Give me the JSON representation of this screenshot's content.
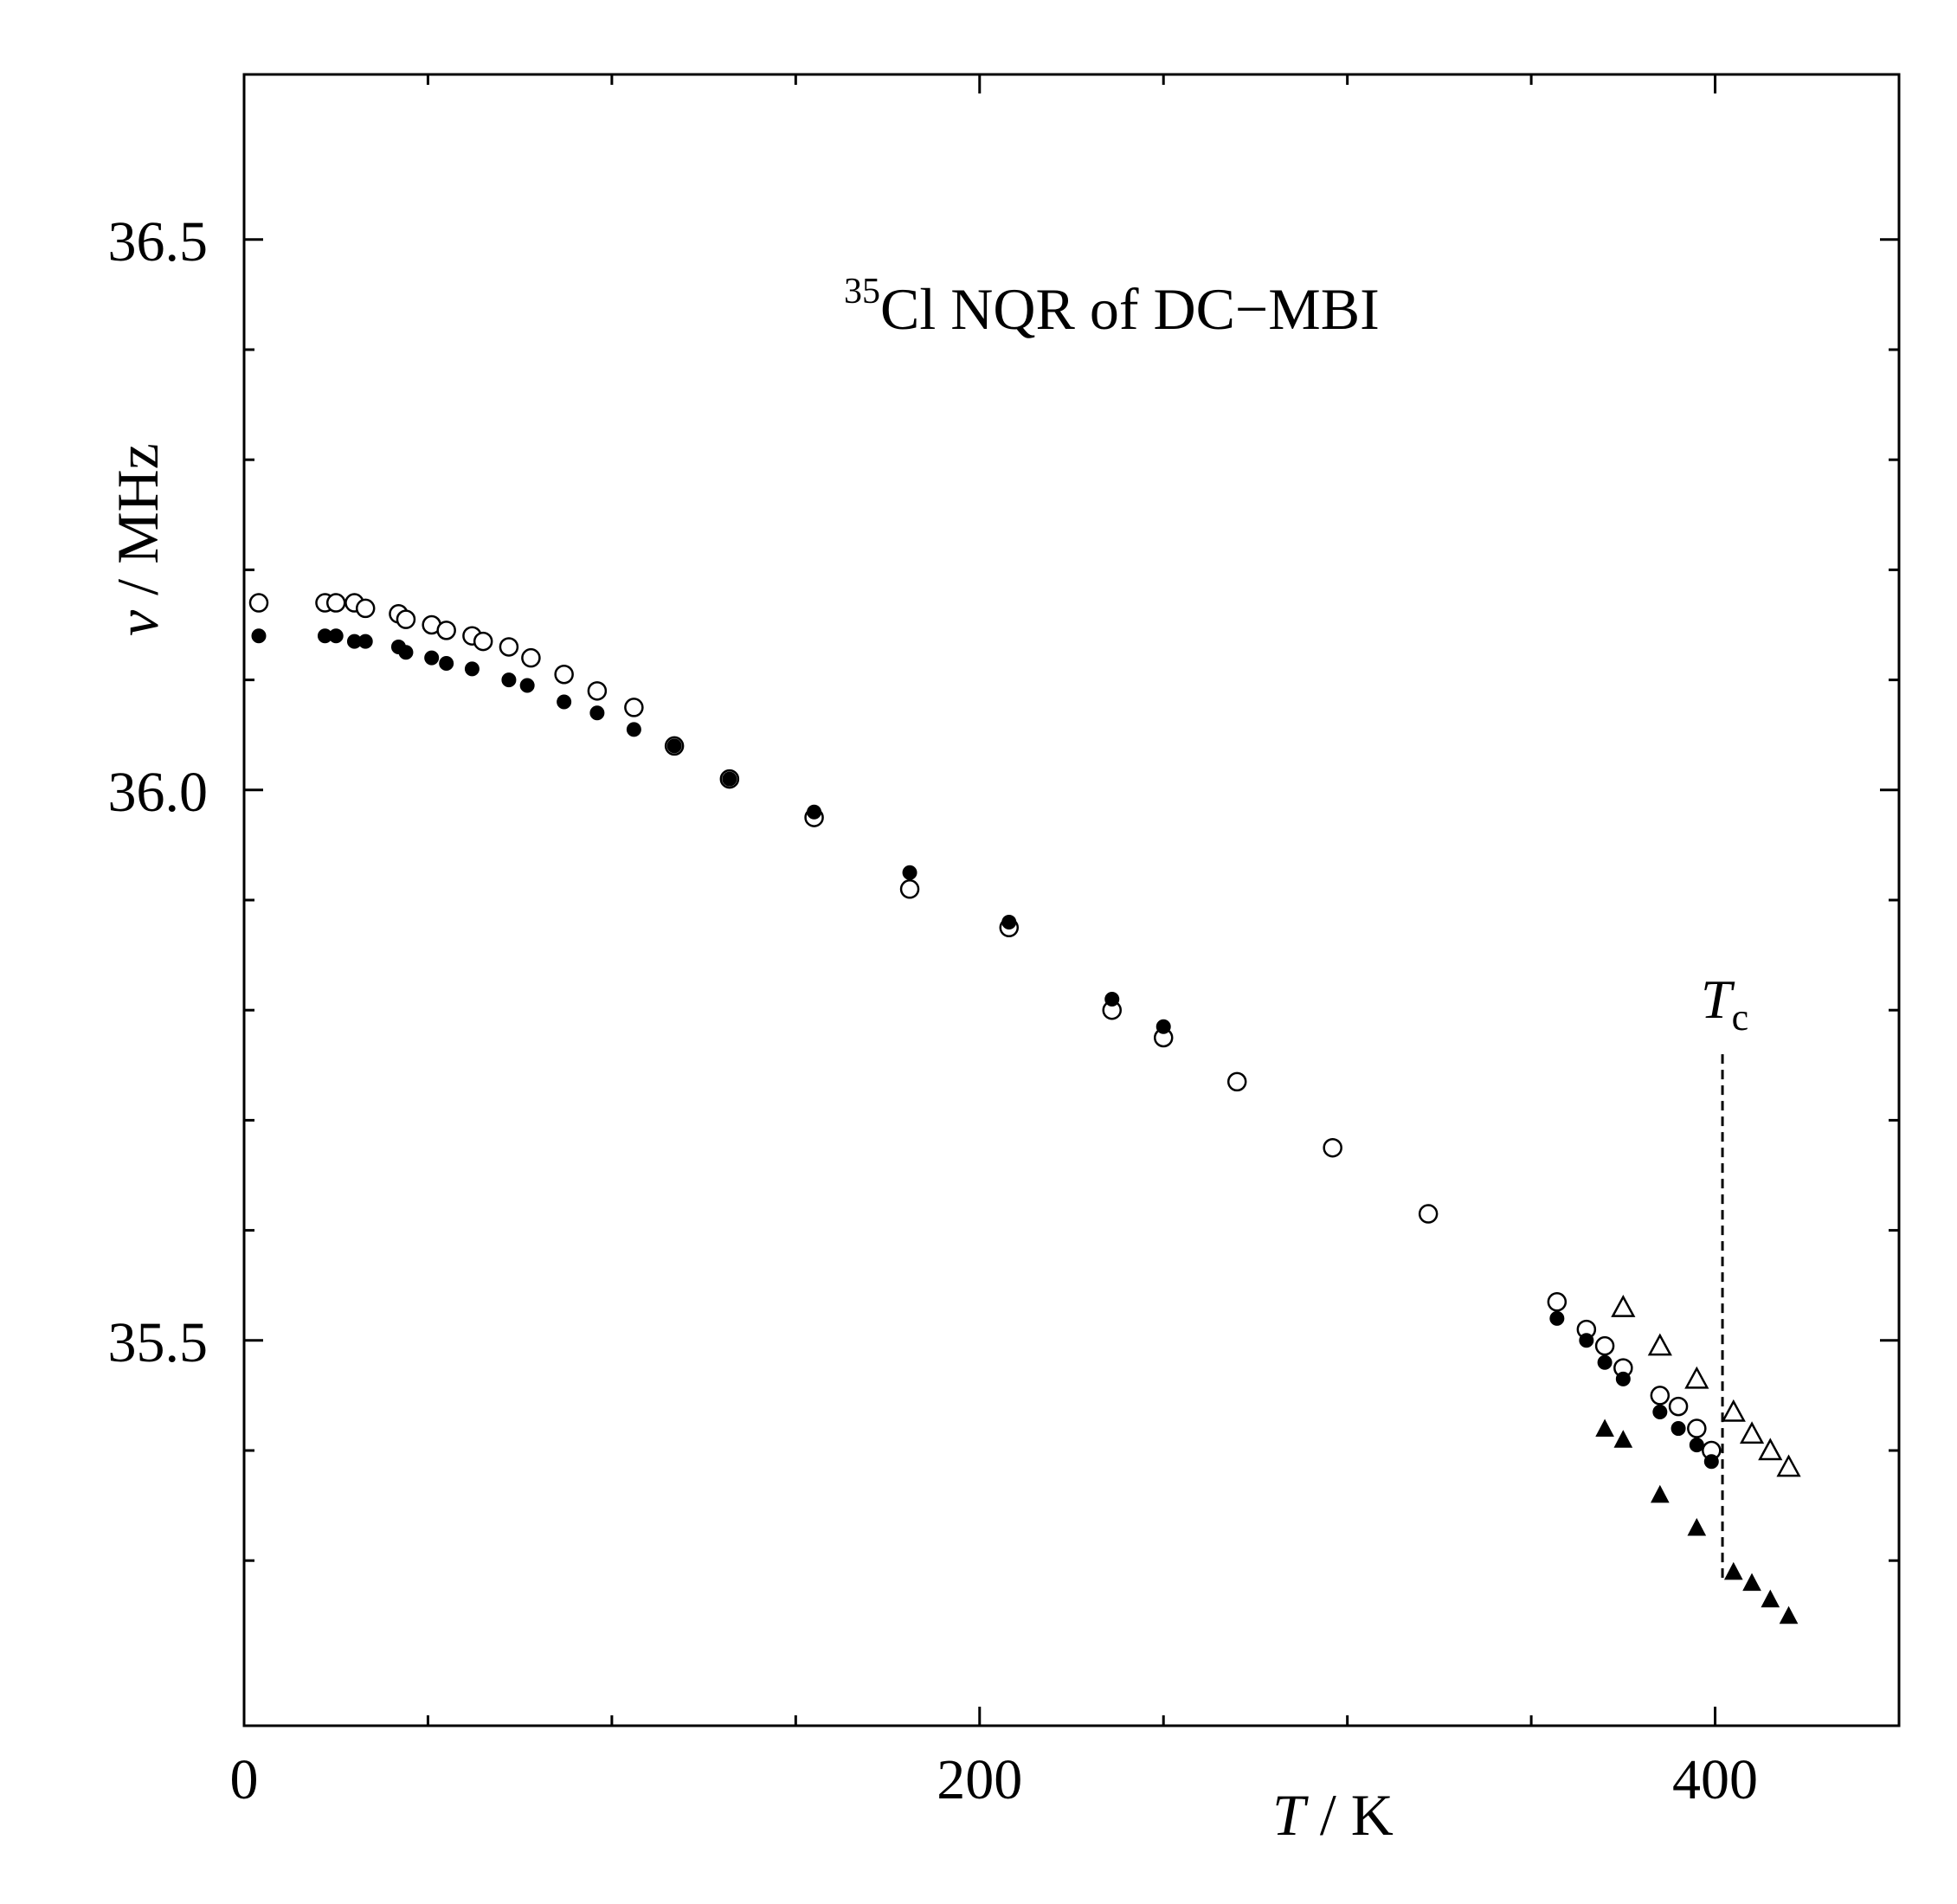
{
  "chart_data": {
    "type": "scatter",
    "title_prefix": "35",
    "title_main": "Cl NQR of DC−MBI",
    "xlabel_var": "T",
    "xlabel_unit": " / K",
    "ylabel_var": "ν",
    "ylabel_unit": " / MHz",
    "xlim": [
      0,
      450
    ],
    "ylim": [
      35.15,
      36.65
    ],
    "x_ticks_major": [
      0,
      200,
      400
    ],
    "x_tick_labels": [
      "0",
      "200",
      "400"
    ],
    "x_ticks_minor": [
      50,
      100,
      150,
      250,
      300,
      350
    ],
    "y_ticks_major": [
      35.5,
      36.0,
      36.5
    ],
    "y_tick_labels": [
      "35.5",
      "36.0",
      "36.5"
    ],
    "y_ticks_minor": [
      35.3,
      35.4,
      35.6,
      35.7,
      35.8,
      35.9,
      36.1,
      36.2,
      36.3,
      36.4
    ],
    "tc": {
      "label_var": "T",
      "label_sub": "c",
      "x": 402,
      "y_range": [
        35.28,
        35.76
      ]
    },
    "grid": false,
    "series": [
      {
        "marker": "open-circle",
        "points": [
          [
            4,
            36.17
          ],
          [
            22,
            36.17
          ],
          [
            25,
            36.17
          ],
          [
            30,
            36.17
          ],
          [
            33,
            36.165
          ],
          [
            42,
            36.16
          ],
          [
            44,
            36.155
          ],
          [
            51,
            36.15
          ],
          [
            55,
            36.145
          ],
          [
            62,
            36.14
          ],
          [
            65,
            36.135
          ],
          [
            72,
            36.13
          ],
          [
            78,
            36.12
          ],
          [
            87,
            36.105
          ],
          [
            96,
            36.09
          ],
          [
            106,
            36.075
          ],
          [
            117,
            36.04
          ],
          [
            132,
            36.01
          ],
          [
            155,
            35.975
          ],
          [
            181,
            35.91
          ],
          [
            208,
            35.875
          ],
          [
            236,
            35.8
          ],
          [
            250,
            35.775
          ],
          [
            270,
            35.735
          ],
          [
            296,
            35.675
          ],
          [
            322,
            35.615
          ],
          [
            357,
            35.535
          ],
          [
            365,
            35.51
          ],
          [
            370,
            35.495
          ],
          [
            375,
            35.475
          ],
          [
            385,
            35.45
          ],
          [
            390,
            35.44
          ],
          [
            395,
            35.42
          ],
          [
            399,
            35.4
          ]
        ]
      },
      {
        "marker": "filled-circle",
        "points": [
          [
            4,
            36.14
          ],
          [
            22,
            36.14
          ],
          [
            25,
            36.14
          ],
          [
            30,
            36.135
          ],
          [
            33,
            36.135
          ],
          [
            42,
            36.13
          ],
          [
            44,
            36.125
          ],
          [
            51,
            36.12
          ],
          [
            55,
            36.115
          ],
          [
            62,
            36.11
          ],
          [
            72,
            36.1
          ],
          [
            77,
            36.095
          ],
          [
            87,
            36.08
          ],
          [
            96,
            36.07
          ],
          [
            106,
            36.055
          ],
          [
            117,
            36.04
          ],
          [
            132,
            36.01
          ],
          [
            155,
            35.98
          ],
          [
            181,
            35.925
          ],
          [
            208,
            35.88
          ],
          [
            236,
            35.81
          ],
          [
            250,
            35.785
          ],
          [
            357,
            35.52
          ],
          [
            365,
            35.5
          ],
          [
            370,
            35.48
          ],
          [
            375,
            35.465
          ],
          [
            385,
            35.435
          ],
          [
            390,
            35.42
          ],
          [
            395,
            35.405
          ],
          [
            399,
            35.39
          ]
        ]
      },
      {
        "marker": "open-triangle",
        "points": [
          [
            375,
            35.53
          ],
          [
            385,
            35.495
          ],
          [
            395,
            35.465
          ],
          [
            405,
            35.435
          ],
          [
            410,
            35.415
          ],
          [
            415,
            35.4
          ],
          [
            420,
            35.385
          ]
        ]
      },
      {
        "marker": "filled-triangle",
        "points": [
          [
            370,
            35.42
          ],
          [
            375,
            35.41
          ],
          [
            385,
            35.36
          ],
          [
            395,
            35.33
          ],
          [
            405,
            35.29
          ],
          [
            410,
            35.28
          ],
          [
            415,
            35.265
          ],
          [
            420,
            35.25
          ]
        ]
      }
    ]
  }
}
